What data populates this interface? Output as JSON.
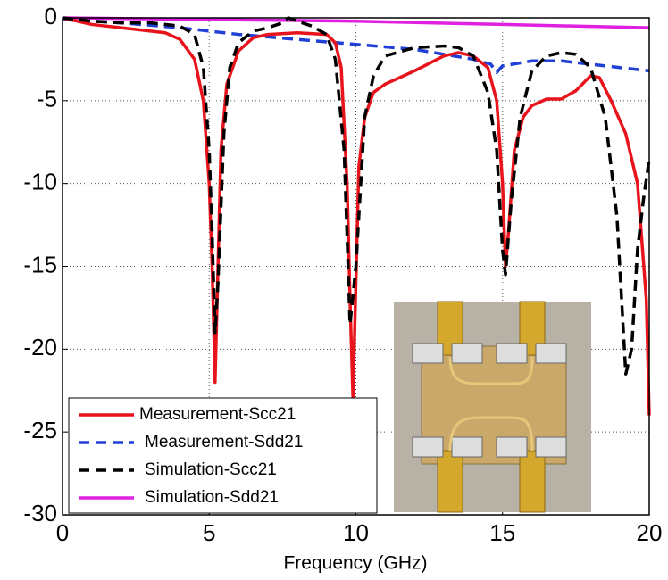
{
  "chart_data": {
    "type": "line",
    "xlabel": "Frequency (GHz)",
    "xlim": [
      0,
      20
    ],
    "xticks": [
      0,
      5,
      10,
      15,
      20
    ],
    "ylim": [
      -30,
      0
    ],
    "yticks": [
      0,
      -5,
      -10,
      -15,
      -20,
      -25,
      -30
    ],
    "grid": true,
    "legend": "lower left",
    "series": [
      {
        "name": "Measurement-Scc21",
        "color": "#e8141b",
        "dash": "solid",
        "x": [
          0,
          1,
          2,
          3,
          3.5,
          4,
          4.5,
          4.8,
          5,
          5.1,
          5.2,
          5.3,
          5.4,
          5.6,
          6,
          6.5,
          7,
          8,
          9,
          9.3,
          9.5,
          9.7,
          9.8,
          9.9,
          10,
          10.1,
          10.3,
          10.6,
          11,
          12,
          13,
          13.5,
          14,
          14.5,
          14.8,
          15,
          15.1,
          15.2,
          15.4,
          15.7,
          16,
          16.5,
          17,
          17.5,
          18,
          18.3,
          18.7,
          19.2,
          19.6,
          19.9,
          20
        ],
        "values": [
          0,
          -0.4,
          -0.6,
          -0.8,
          -0.9,
          -1.3,
          -2.5,
          -5,
          -10,
          -15,
          -22,
          -15,
          -8,
          -4,
          -2,
          -1.2,
          -1,
          -0.9,
          -1,
          -1.5,
          -3,
          -10,
          -17,
          -23,
          -16,
          -9,
          -6,
          -4.5,
          -4,
          -3.2,
          -2.3,
          -2.1,
          -2.3,
          -3,
          -5,
          -10,
          -15,
          -13,
          -8,
          -6,
          -5.3,
          -4.9,
          -4.9,
          -4.4,
          -3.5,
          -3.6,
          -5,
          -7,
          -10,
          -17,
          -24
        ]
      },
      {
        "name": "Measurement-Sdd21",
        "color": "#1f3fd6",
        "dash": "dashed",
        "x": [
          0,
          2,
          4,
          6,
          8,
          10,
          12,
          13,
          14,
          14.6,
          14.8,
          15,
          16,
          17,
          18,
          19,
          20
        ],
        "values": [
          -0.1,
          -0.3,
          -0.6,
          -1,
          -1.3,
          -1.6,
          -1.9,
          -2.2,
          -2.5,
          -2.8,
          -3.3,
          -2.9,
          -2.6,
          -2.6,
          -2.8,
          -3,
          -3.2
        ]
      },
      {
        "name": "Simulation-Scc21",
        "color": "#000000",
        "dash": "dashed",
        "x": [
          0,
          1,
          2,
          3,
          4,
          4.5,
          4.8,
          5,
          5.1,
          5.2,
          5.3,
          5.5,
          5.7,
          6,
          6.5,
          7,
          7.5,
          7.7,
          8,
          8.5,
          9,
          9.3,
          9.6,
          9.8,
          10,
          10.3,
          10.6,
          11,
          12,
          13,
          13.5,
          14,
          14.5,
          14.8,
          15,
          15.1,
          15.3,
          15.6,
          16,
          16.5,
          17,
          17.5,
          18,
          18.5,
          18.9,
          19.2,
          19.4,
          19.6,
          19.8,
          20
        ],
        "values": [
          0,
          -0.2,
          -0.3,
          -0.3,
          -0.5,
          -1,
          -3,
          -8,
          -13,
          -19,
          -16,
          -7,
          -3,
          -1.5,
          -0.8,
          -0.6,
          -0.3,
          0,
          -0.2,
          -0.5,
          -1,
          -2.5,
          -8,
          -18.5,
          -15,
          -6,
          -3.5,
          -2.3,
          -1.8,
          -1.7,
          -1.8,
          -2.3,
          -4.5,
          -8,
          -14,
          -15.5,
          -11,
          -6,
          -3.2,
          -2.3,
          -2.1,
          -2.2,
          -3,
          -6,
          -12,
          -21.5,
          -20,
          -14,
          -11,
          -8.5
        ]
      },
      {
        "name": "Simulation-Sdd21",
        "color": "#e020e0",
        "dash": "solid",
        "x": [
          0,
          5,
          10,
          15,
          20
        ],
        "values": [
          0,
          -0.1,
          -0.2,
          -0.4,
          -0.6
        ]
      }
    ]
  }
}
